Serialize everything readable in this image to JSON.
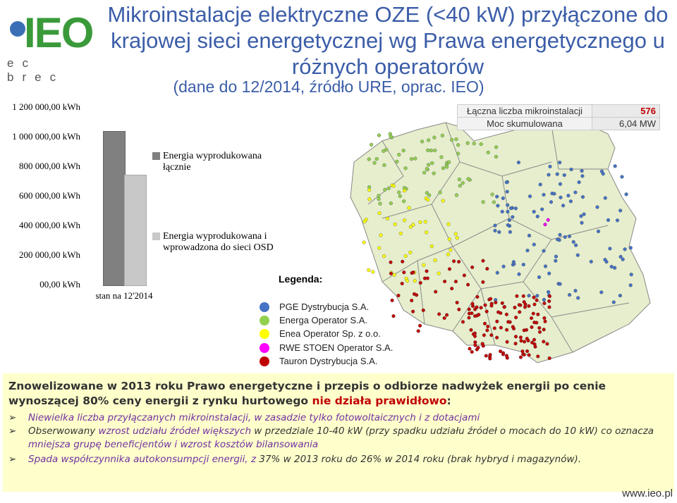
{
  "logo": {
    "brand": "IEO",
    "sub": "ec brec"
  },
  "header": {
    "title": "Mikroinstalacje elektryczne OZE (<40 kW) przyłączone do krajowej sieci energetycznej wg Prawa energetycznego u różnych operatorów",
    "subtitle": "(dane do 12/2014, źródło URE, oprac. IEO)"
  },
  "chart_data": {
    "type": "bar",
    "categories": [
      "stan na 12'2014"
    ],
    "series": [
      {
        "name": "Energia wyprodukowana łącznie",
        "values": [
          1040000
        ],
        "color": "#808080"
      },
      {
        "name": "Energia wyprodukowana i wprowadzona do sieci OSD",
        "values": [
          745000
        ],
        "color": "#c8c8c8"
      }
    ],
    "ylim": [
      0,
      1200000
    ],
    "yticks": [
      "00,00 kWh",
      "200 000,00 kWh",
      "400 000,00 kWh",
      "600 000,00 kWh",
      "800 000,00 kWh",
      "1 000 000,00 kWh",
      "1 200 000,00 kWh"
    ],
    "legend": [
      "Energia wyprodukowana łącznie",
      "Energia wyprodukowana i wprowadzona do sieci OSD"
    ]
  },
  "stats": {
    "total_label": "Łączna liczba mikroinstalacji",
    "total_value": "576",
    "power_label": "Moc skumulowana",
    "power_value": "6,04 MW"
  },
  "map_legend": {
    "title": "Legenda:",
    "items": [
      {
        "label": "PGE Dystrybucja S.A.",
        "color": "#4472c4"
      },
      {
        "label": "Energa Operator S.A.",
        "color": "#92d050"
      },
      {
        "label": "Enea Operator Sp. z o.o.",
        "color": "#ffff00"
      },
      {
        "label": "RWE STOEN Operator S.A.",
        "color": "#ff00ff"
      },
      {
        "label": "Tauron Dystrybucja S.A.",
        "color": "#c00000"
      }
    ]
  },
  "info": {
    "head_part1": "Znowelizowane w 2013 roku Prawo energetyczne i przepis o odbiorze nadwyżek energii po cenie wynoszącej 80% ceny energii z rynku hurtowego ",
    "head_red": "nie działa prawidłowo",
    "head_end": ":",
    "bullet1": "Niewielka liczba przyłączanych mikroinstalacji, w zasadzie tylko fotowoltaicznych i z dotacjami",
    "bullet2_a": "Obserwowany ",
    "bullet2_red": "wzrost udziału źródeł większych",
    "bullet2_b": " w przedziale 10-40 kW (przy spadku udziału źródeł o mocach do 10 kW) co oznacza ",
    "bullet2_red2": "mniejsza grupę beneficjentów i wzrost kosztów bilansowania",
    "bullet3_red": "Spada współczynnika autokonsumpcji energii, z ",
    "bullet3_b": "37% w 2013 roku do 26% w 2014 roku (brak hybryd i magazynów).",
    "bullet_mark": "➢"
  },
  "footer": {
    "url": "www.ieo.pl"
  }
}
